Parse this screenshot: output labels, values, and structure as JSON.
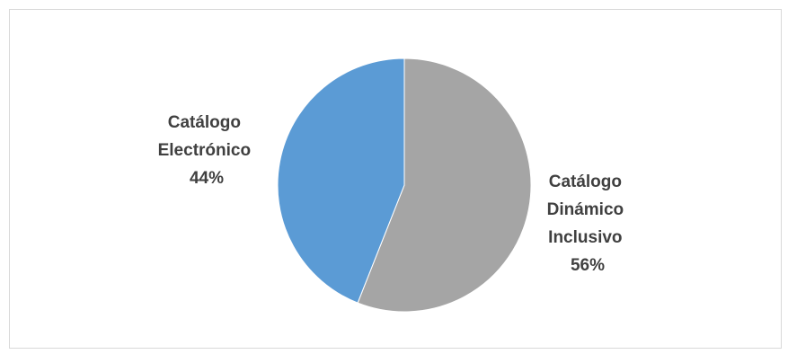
{
  "chart_data": {
    "type": "pie",
    "title": "",
    "start_angle_deg": 0,
    "direction": "clockwise",
    "slices": [
      {
        "label_lines": [
          "Catálogo",
          "Dinámico",
          "Inclusivo"
        ],
        "percent_text": "56%",
        "value": 56,
        "color": "#a5a5a5"
      },
      {
        "label_lines": [
          "Catálogo",
          "Electrónico"
        ],
        "percent_text": "44%",
        "value": 44,
        "color": "#5b9bd5"
      }
    ],
    "legend": "none",
    "data_labels": "outside"
  }
}
